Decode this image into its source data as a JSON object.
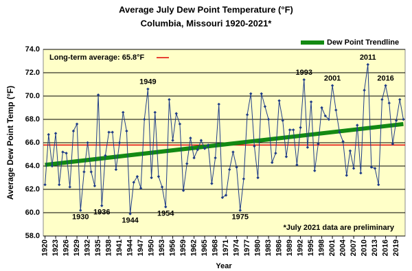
{
  "chart_data": {
    "type": "line",
    "title": "Average July Dew Point Temperature (°F)",
    "subtitle": "Columbia, Missouri 1920-2021*",
    "x_label": "Year",
    "y_label": "Average  Dew  Point Temp (°F)",
    "note": "*July 2021 data are preliminary",
    "x": [
      1920,
      1921,
      1922,
      1923,
      1924,
      1925,
      1926,
      1927,
      1928,
      1929,
      1930,
      1931,
      1932,
      1933,
      1934,
      1935,
      1936,
      1937,
      1938,
      1939,
      1940,
      1941,
      1942,
      1943,
      1944,
      1945,
      1946,
      1947,
      1948,
      1949,
      1950,
      1951,
      1952,
      1953,
      1954,
      1955,
      1956,
      1957,
      1958,
      1959,
      1960,
      1961,
      1962,
      1963,
      1964,
      1965,
      1966,
      1967,
      1968,
      1969,
      1970,
      1971,
      1972,
      1973,
      1974,
      1975,
      1976,
      1977,
      1978,
      1979,
      1980,
      1981,
      1982,
      1983,
      1984,
      1985,
      1986,
      1987,
      1988,
      1989,
      1990,
      1991,
      1992,
      1993,
      1994,
      1995,
      1996,
      1997,
      1998,
      1999,
      2000,
      2001,
      2002,
      2003,
      2004,
      2005,
      2006,
      2007,
      2008,
      2009,
      2010,
      2011,
      2012,
      2013,
      2014,
      2015,
      2016,
      2017,
      2018,
      2019,
      2020,
      2021
    ],
    "values": [
      62.4,
      66.7,
      64.0,
      66.8,
      62.4,
      65.2,
      65.1,
      62.2,
      67.0,
      67.6,
      60.2,
      63.5,
      66.0,
      63.5,
      62.3,
      70.1,
      60.6,
      64.9,
      66.9,
      66.9,
      63.7,
      66.0,
      68.6,
      67.0,
      59.9,
      62.6,
      63.1,
      62.1,
      68.0,
      70.6,
      63.0,
      68.6,
      63.1,
      62.2,
      60.5,
      69.7,
      66.2,
      68.5,
      67.6,
      61.9,
      64.2,
      66.4,
      64.7,
      65.4,
      66.2,
      65.5,
      65.8,
      62.5,
      64.7,
      69.3,
      61.3,
      61.5,
      63.7,
      65.2,
      63.9,
      60.2,
      62.9,
      68.4,
      70.2,
      65.7,
      63.0,
      70.2,
      69.1,
      68.0,
      64.3,
      65.1,
      69.6,
      67.9,
      64.8,
      67.1,
      67.1,
      64.1,
      67.3,
      71.4,
      65.6,
      69.5,
      63.6,
      65.9,
      69.0,
      68.3,
      68.0,
      70.9,
      68.8,
      66.9,
      66.1,
      63.2,
      65.3,
      63.8,
      67.5,
      63.4,
      70.5,
      72.7,
      63.9,
      63.8,
      62.4,
      69.7,
      70.9,
      69.4,
      65.9,
      67.9,
      69.7,
      68.0
    ],
    "color": "#1f3c88",
    "trendline": {
      "name": "Dew Point Trendline",
      "color": "#138a13",
      "x": [
        1920,
        2021
      ],
      "values": [
        64.1,
        67.6
      ]
    },
    "average": {
      "label": "Long-term average: 65.8°F",
      "value": 65.8,
      "color": "#e00000"
    },
    "annotations": [
      {
        "label": "1930",
        "x": 1930
      },
      {
        "label": "1936",
        "x": 1936
      },
      {
        "label": "1944",
        "x": 1944
      },
      {
        "label": "1949",
        "x": 1949
      },
      {
        "label": "1954",
        "x": 1954
      },
      {
        "label": "1975",
        "x": 1975
      },
      {
        "label": "1993",
        "x": 1993
      },
      {
        "label": "2001",
        "x": 2001
      },
      {
        "label": "2011",
        "x": 2011
      },
      {
        "label": "2016",
        "x": 2016
      }
    ],
    "xlim": [
      1919.5,
      2021.5
    ],
    "xticks": [
      1920,
      1923,
      1926,
      1929,
      1932,
      1935,
      1938,
      1941,
      1944,
      1947,
      1950,
      1953,
      1956,
      1959,
      1962,
      1965,
      1968,
      1971,
      1974,
      1977,
      1980,
      1983,
      1986,
      1989,
      1992,
      1995,
      1998,
      2001,
      2004,
      2007,
      2010,
      2013,
      2016,
      2019
    ],
    "ylim": [
      58,
      74
    ],
    "yticks": [
      {
        "value": 58,
        "label": "58.0"
      },
      {
        "value": 60,
        "label": "60.0"
      },
      {
        "value": 62,
        "label": "62.0"
      },
      {
        "value": 64,
        "label": "64.0"
      },
      {
        "value": 66,
        "label": "66.0"
      },
      {
        "value": 68,
        "label": "68.0"
      },
      {
        "value": 70,
        "label": "70.0"
      },
      {
        "value": 72,
        "label": "72.0"
      },
      {
        "value": 74,
        "label": "74.0"
      }
    ],
    "grid": true
  }
}
